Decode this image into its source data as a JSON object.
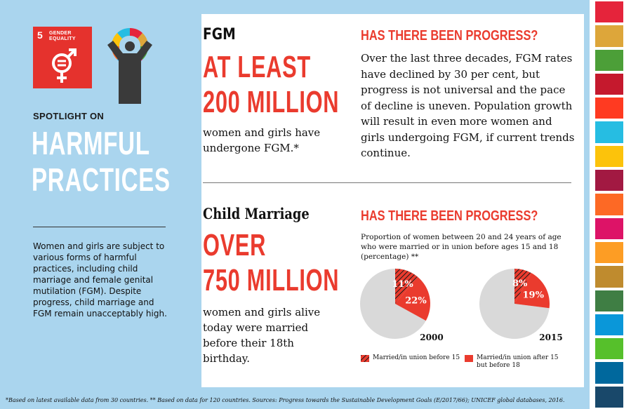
{
  "sdg": {
    "number": "5",
    "label_line1": "GENDER",
    "label_line2": "EQUALITY"
  },
  "left": {
    "spotlight": "SPOTLIGHT ON",
    "heading_line1": "HARMFUL",
    "heading_line2": "PRACTICES",
    "body": "Women and girls are subject to various forms of harmful practices, including child marriage and female genital mutilation (FGM). Despite progress, child marriage and FGM remain unacceptably high."
  },
  "fgm": {
    "title": "FGM",
    "big_line1": "AT LEAST",
    "big_line2": "200 MILLION",
    "sub": "women and girls have undergone FGM.*",
    "progress_title": "HAS THERE BEEN PROGRESS?",
    "progress_text": "Over the last three decades, FGM rates have declined by 30 per cent, but progress is not universal and the pace of decline is uneven. Population growth will result in even more women and girls undergoing FGM, if current trends continue."
  },
  "child_marriage": {
    "title": "Child Marriage",
    "big_line1": "OVER",
    "big_line2": "750 MILLION",
    "sub": "women and girls alive today were married before their 18th birthday.",
    "progress_title": "HAS THERE BEEN PROGRESS?",
    "chart_caption": "Proportion of women between 20 and 24 years of age who were married or in union before ages 15 and 18 (percentage) **"
  },
  "legend": {
    "item1": "Married/in union before 15",
    "item2": "Married/in union after 15 but before 18"
  },
  "footnote": "*Based on latest available data from 30 countries.  ** Based on data for 120 countries.  Sources: Progress towards the Sustainable Development Goals (E/2017/66); UNICEF global databases, 2016.",
  "colors": {
    "red": "#ea3b2e",
    "light_blue": "#aad5ee",
    "pie_grey": "#d9d9d9",
    "sdg_stripes": [
      "#e5243b",
      "#dda63a",
      "#4c9f38",
      "#c5192d",
      "#ff3a21",
      "#26bde2",
      "#fcc30b",
      "#a21942",
      "#fd6925",
      "#dd1367",
      "#fd9d24",
      "#bf8b2e",
      "#3f7e44",
      "#0a97d9",
      "#56c02b",
      "#00689d",
      "#19486a"
    ]
  },
  "chart_data": {
    "type": "pie",
    "title": "Proportion of women between 20 and 24 years of age who were married or in union before ages 15 and 18 (percentage) **",
    "series_names": [
      "Married/in union before 15",
      "Married/in union after 15 but before 18"
    ],
    "pies": [
      {
        "label": "2000",
        "values": [
          11,
          22
        ],
        "labels": [
          "11%",
          "22%"
        ]
      },
      {
        "label": "2015",
        "values": [
          8,
          19
        ],
        "labels": [
          "8%",
          "19%"
        ]
      }
    ]
  }
}
